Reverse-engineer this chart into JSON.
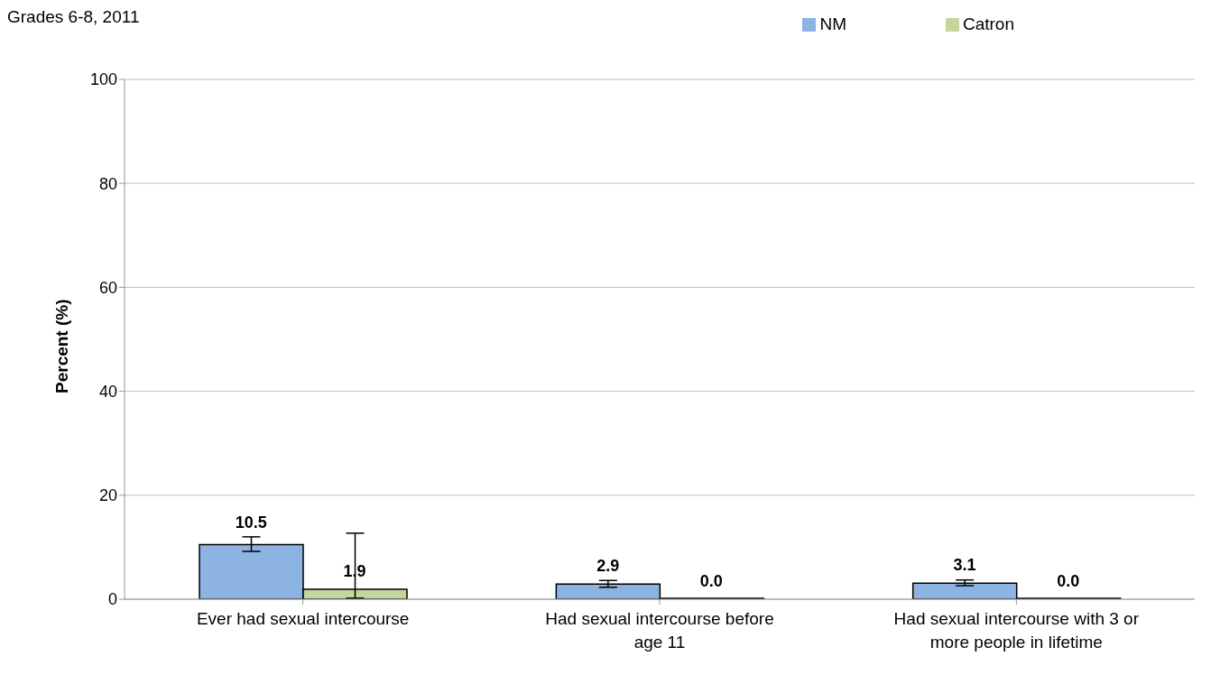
{
  "chart_data": {
    "type": "bar",
    "title": "Grades 6-8, 2011",
    "ylabel": "Percent (%)",
    "categories": [
      "Ever had sexual intercourse",
      "Had sexual intercourse before age 11",
      "Had sexual intercourse with 3 or more people in lifetime"
    ],
    "series": [
      {
        "name": "NM",
        "color": "#8db3e2",
        "values": [
          10.5,
          2.9,
          3.1
        ],
        "value_labels": [
          "10.5",
          "2.9",
          "3.1"
        ],
        "errors": [
          [
            9.2,
            12.0
          ],
          [
            2.3,
            3.6
          ],
          [
            2.6,
            3.7
          ]
        ]
      },
      {
        "name": "Catron",
        "color": "#c3d69b",
        "values": [
          1.9,
          0,
          0
        ],
        "value_labels": [
          "1.9",
          "0.0",
          "0.0"
        ],
        "errors": [
          [
            0.2,
            12.7
          ],
          null,
          null
        ]
      }
    ],
    "ylim": [
      0,
      100
    ],
    "yticks": [
      0,
      20,
      40,
      60,
      80,
      100
    ],
    "grid": "y",
    "legend": "top right"
  }
}
